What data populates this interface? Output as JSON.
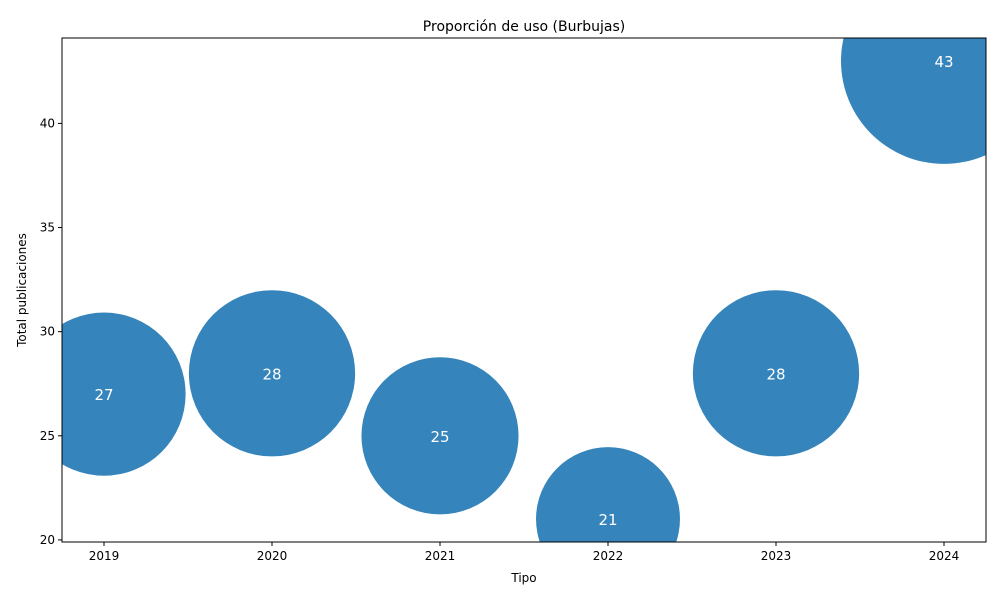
{
  "chart_data": {
    "type": "scatter",
    "title": "Proporción de uso (Burbujas)",
    "xlabel": "Tipo",
    "ylabel": "Total publicaciones",
    "x": [
      2019,
      2020,
      2021,
      2022,
      2023,
      2024
    ],
    "values": [
      27,
      28,
      25,
      21,
      28,
      43
    ],
    "xlim": [
      2018.75,
      2024.25
    ],
    "ylim": [
      19.9,
      44.1
    ],
    "xticks": [
      "2019",
      "2020",
      "2021",
      "2022",
      "2023",
      "2024"
    ],
    "yticks": [
      20,
      25,
      30,
      35,
      40
    ],
    "grid": false,
    "bubble_color": "#1f77b4",
    "bubble_size_encodes": "values",
    "data_labels": true,
    "label_color": "#ffffff"
  }
}
